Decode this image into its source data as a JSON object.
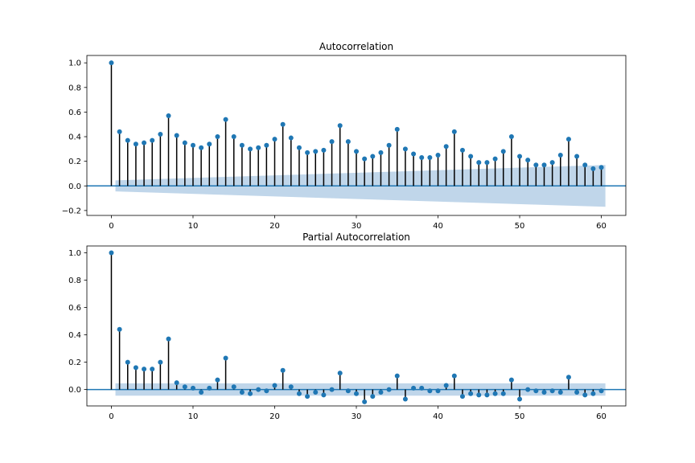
{
  "chart_data": [
    {
      "type": "stem",
      "title": "Autocorrelation",
      "xlabel": "",
      "ylabel": "",
      "xlim": [
        -3,
        63
      ],
      "ylim": [
        -0.24,
        1.06
      ],
      "xticks": [
        0,
        10,
        20,
        30,
        40,
        50,
        60
      ],
      "yticks": [
        -0.2,
        0.0,
        0.2,
        0.4,
        0.6,
        0.8,
        1.0
      ],
      "xtick_labels": [
        "0",
        "10",
        "20",
        "30",
        "40",
        "50",
        "60"
      ],
      "ytick_labels": [
        "−0.2",
        "0.0",
        "0.2",
        "0.4",
        "0.6",
        "0.8",
        "1.0"
      ],
      "lags": [
        0,
        1,
        2,
        3,
        4,
        5,
        6,
        7,
        8,
        9,
        10,
        11,
        12,
        13,
        14,
        15,
        16,
        17,
        18,
        19,
        20,
        21,
        22,
        23,
        24,
        25,
        26,
        27,
        28,
        29,
        30,
        31,
        32,
        33,
        34,
        35,
        36,
        37,
        38,
        39,
        40,
        41,
        42,
        43,
        44,
        45,
        46,
        47,
        48,
        49,
        50,
        51,
        52,
        53,
        54,
        55,
        56,
        57,
        58,
        59,
        60
      ],
      "values": [
        1.0,
        0.44,
        0.37,
        0.34,
        0.35,
        0.37,
        0.42,
        0.57,
        0.41,
        0.35,
        0.33,
        0.31,
        0.34,
        0.4,
        0.54,
        0.4,
        0.33,
        0.3,
        0.31,
        0.33,
        0.38,
        0.5,
        0.39,
        0.31,
        0.27,
        0.28,
        0.29,
        0.36,
        0.49,
        0.36,
        0.28,
        0.22,
        0.24,
        0.27,
        0.33,
        0.46,
        0.3,
        0.26,
        0.23,
        0.23,
        0.25,
        0.32,
        0.44,
        0.29,
        0.24,
        0.19,
        0.19,
        0.22,
        0.28,
        0.4,
        0.24,
        0.21,
        0.17,
        0.17,
        0.19,
        0.25,
        0.38,
        0.24,
        0.17,
        0.14,
        0.15
      ],
      "confidence_interval": {
        "lag_start": 0.5,
        "lag_end": 60.5,
        "half_width_start": 0.045,
        "half_width_end": 0.17
      }
    },
    {
      "type": "stem",
      "title": "Partial Autocorrelation",
      "xlabel": "",
      "ylabel": "",
      "xlim": [
        -3,
        63
      ],
      "ylim": [
        -0.12,
        1.05
      ],
      "xticks": [
        0,
        10,
        20,
        30,
        40,
        50,
        60
      ],
      "yticks": [
        0.0,
        0.2,
        0.4,
        0.6,
        0.8,
        1.0
      ],
      "xtick_labels": [
        "0",
        "10",
        "20",
        "30",
        "40",
        "50",
        "60"
      ],
      "ytick_labels": [
        "0.0",
        "0.2",
        "0.4",
        "0.6",
        "0.8",
        "1.0"
      ],
      "lags": [
        0,
        1,
        2,
        3,
        4,
        5,
        6,
        7,
        8,
        9,
        10,
        11,
        12,
        13,
        14,
        15,
        16,
        17,
        18,
        19,
        20,
        21,
        22,
        23,
        24,
        25,
        26,
        27,
        28,
        29,
        30,
        31,
        32,
        33,
        34,
        35,
        36,
        37,
        38,
        39,
        40,
        41,
        42,
        43,
        44,
        45,
        46,
        47,
        48,
        49,
        50,
        51,
        52,
        53,
        54,
        55,
        56,
        57,
        58,
        59,
        60
      ],
      "values": [
        1.0,
        0.44,
        0.2,
        0.16,
        0.15,
        0.15,
        0.2,
        0.37,
        0.05,
        0.02,
        0.01,
        -0.02,
        0.01,
        0.07,
        0.23,
        0.02,
        -0.02,
        -0.03,
        0.0,
        -0.01,
        0.03,
        0.14,
        0.02,
        -0.03,
        -0.05,
        -0.02,
        -0.04,
        0.0,
        0.12,
        -0.01,
        -0.03,
        -0.09,
        -0.05,
        -0.02,
        0.0,
        0.1,
        -0.07,
        0.01,
        0.01,
        -0.01,
        -0.01,
        0.03,
        0.1,
        -0.05,
        -0.03,
        -0.04,
        -0.04,
        -0.03,
        -0.03,
        0.07,
        -0.07,
        0.0,
        -0.01,
        -0.02,
        -0.01,
        -0.02,
        0.09,
        -0.02,
        -0.04,
        -0.03,
        -0.01
      ],
      "confidence_interval": {
        "lag_start": 0.5,
        "lag_end": 60.5,
        "half_width_start": 0.045,
        "half_width_end": 0.045
      }
    }
  ],
  "colors": {
    "marker": "#1f77b4",
    "zero_line": "#1f77b4",
    "confidence_band": "#c0d6ea",
    "stem": "#000000",
    "axis": "#000000"
  }
}
